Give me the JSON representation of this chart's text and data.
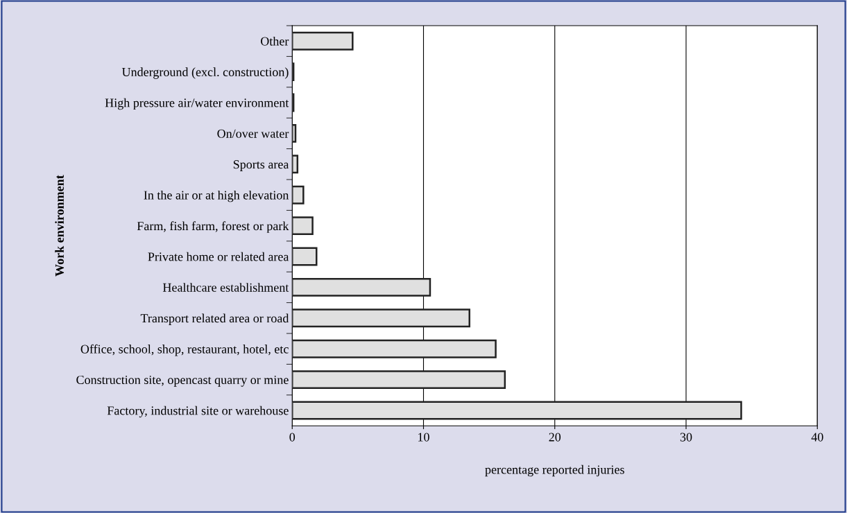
{
  "chart_data": {
    "type": "bar",
    "orientation": "horizontal",
    "xlabel": "percentage reported injuries",
    "ylabel": "Work environment",
    "categories": [
      "Other",
      "Underground (excl. construction)",
      "High pressure air/water environment",
      "On/over water",
      "Sports area",
      "In the air or at high elevation",
      "Farm, fish farm, forest or park",
      "Private home or related area",
      "Healthcare establishment",
      "Transport related area or road",
      "Office, school, shop, restaurant, hotel, etc",
      "Construction site, opencast quarry or mine",
      "Factory, industrial site or warehouse"
    ],
    "values": [
      4.6,
      0.1,
      0.1,
      0.25,
      0.4,
      0.85,
      1.55,
      1.85,
      10.5,
      13.5,
      15.5,
      16.2,
      34.2
    ],
    "color": "#e0e0e0",
    "xlim": [
      0,
      40
    ],
    "xticks": [
      0,
      10,
      20,
      30,
      40
    ],
    "grid": "x"
  }
}
